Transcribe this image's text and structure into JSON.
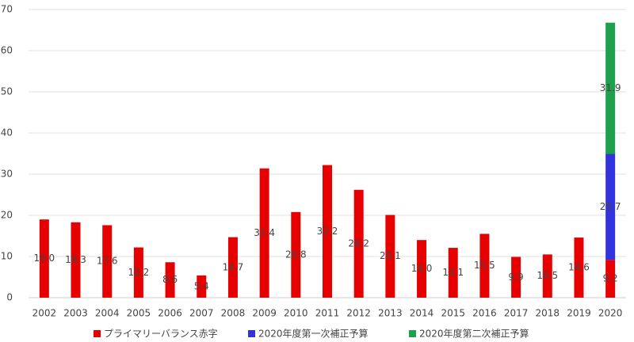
{
  "chart_data": {
    "type": "stacked_bar",
    "categories": [
      "2002",
      "2003",
      "2004",
      "2005",
      "2006",
      "2007",
      "2008",
      "2009",
      "2010",
      "2011",
      "2012",
      "2013",
      "2014",
      "2015",
      "2016",
      "2017",
      "2018",
      "2019",
      "2020"
    ],
    "series": [
      {
        "name": "プライマリーバランス赤字",
        "color": "#e60000",
        "values": [
          19.0,
          18.3,
          17.6,
          12.2,
          8.6,
          5.4,
          14.7,
          31.4,
          20.8,
          32.2,
          26.2,
          20.1,
          14.0,
          12.1,
          15.5,
          9.9,
          10.5,
          14.6,
          9.2
        ],
        "value_labels": [
          "19.0",
          "18.3",
          "17.6",
          "12.2",
          "8.6",
          "5.4",
          "14.7",
          "31.4",
          "20.8",
          "32.2",
          "26.2",
          "20.1",
          "14.0",
          "12.1",
          "15.5",
          "9.9",
          "10.5",
          "14.6",
          "9.2"
        ]
      },
      {
        "name": "2020年度第一次補正予算",
        "color": "#3333dd",
        "values": [
          null,
          null,
          null,
          null,
          null,
          null,
          null,
          null,
          null,
          null,
          null,
          null,
          null,
          null,
          null,
          null,
          null,
          null,
          25.7
        ]
      },
      {
        "name": "2020年度第二次補正予算",
        "color": "#1ea04e",
        "values": [
          null,
          null,
          null,
          null,
          null,
          null,
          null,
          null,
          null,
          null,
          null,
          null,
          null,
          null,
          null,
          null,
          null,
          null,
          31.9
        ]
      }
    ],
    "ylim": [
      0,
      70
    ],
    "yticks": [
      0,
      10,
      20,
      30,
      40,
      50,
      60,
      70
    ],
    "grid": true,
    "legend": "bottom"
  }
}
